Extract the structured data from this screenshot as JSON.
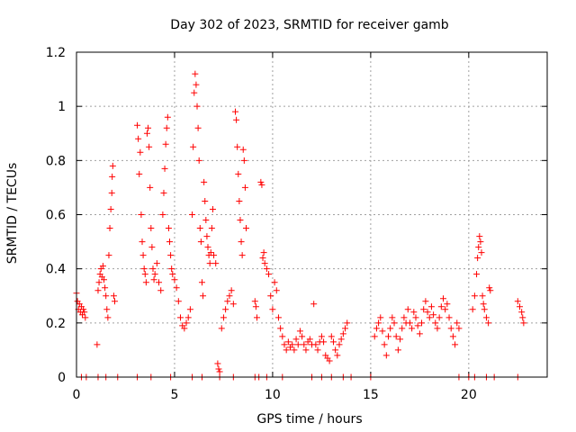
{
  "chart_data": {
    "type": "scatter",
    "title": "Day 302 of 2023, SRMTID for receiver gamb",
    "xlabel": "GPS time / hours",
    "ylabel": "SRMTID / TECUs",
    "xlim": [
      0,
      24
    ],
    "ylim": [
      0,
      1.2
    ],
    "xticks": [
      0,
      5,
      10,
      15,
      20
    ],
    "xtick_labels": [
      "0",
      "5",
      "10",
      "15",
      "20"
    ],
    "yticks": [
      0,
      0.2,
      0.4,
      0.6,
      0.8,
      1,
      1.2
    ],
    "ytick_labels": [
      "0",
      "0.2",
      "0.4",
      "0.6",
      "0.8",
      "1",
      "1.2"
    ],
    "grid": true,
    "marker": "+",
    "series": [
      {
        "name": "SRMTID",
        "color": "#ff0000",
        "points": [
          [
            0.0,
            0.31
          ],
          [
            0.05,
            0.28
          ],
          [
            0.1,
            0.25
          ],
          [
            0.15,
            0.27
          ],
          [
            0.2,
            0.24
          ],
          [
            0.25,
            0.26
          ],
          [
            0.3,
            0.23
          ],
          [
            0.35,
            0.25
          ],
          [
            0.4,
            0.24
          ],
          [
            0.45,
            0.22
          ],
          [
            1.05,
            0.12
          ],
          [
            1.1,
            0.32
          ],
          [
            1.15,
            0.35
          ],
          [
            1.2,
            0.38
          ],
          [
            1.25,
            0.4
          ],
          [
            1.3,
            0.37
          ],
          [
            1.35,
            0.41
          ],
          [
            1.4,
            0.36
          ],
          [
            1.45,
            0.33
          ],
          [
            1.5,
            0.3
          ],
          [
            1.55,
            0.25
          ],
          [
            1.6,
            0.22
          ],
          [
            1.65,
            0.45
          ],
          [
            1.7,
            0.55
          ],
          [
            1.75,
            0.62
          ],
          [
            1.8,
            0.68
          ],
          [
            1.82,
            0.74
          ],
          [
            1.85,
            0.78
          ],
          [
            1.9,
            0.3
          ],
          [
            1.95,
            0.28
          ],
          [
            3.1,
            0.93
          ],
          [
            3.15,
            0.88
          ],
          [
            3.2,
            0.75
          ],
          [
            3.25,
            0.83
          ],
          [
            3.3,
            0.6
          ],
          [
            3.35,
            0.5
          ],
          [
            3.4,
            0.45
          ],
          [
            3.45,
            0.4
          ],
          [
            3.5,
            0.38
          ],
          [
            3.55,
            0.35
          ],
          [
            3.6,
            0.9
          ],
          [
            3.65,
            0.92
          ],
          [
            3.7,
            0.85
          ],
          [
            3.75,
            0.7
          ],
          [
            3.8,
            0.55
          ],
          [
            3.85,
            0.48
          ],
          [
            3.9,
            0.4
          ],
          [
            3.95,
            0.36
          ],
          [
            4.0,
            0.38
          ],
          [
            4.1,
            0.42
          ],
          [
            4.2,
            0.35
          ],
          [
            4.3,
            0.32
          ],
          [
            4.4,
            0.6
          ],
          [
            4.45,
            0.68
          ],
          [
            4.5,
            0.77
          ],
          [
            4.55,
            0.86
          ],
          [
            4.6,
            0.92
          ],
          [
            4.65,
            0.96
          ],
          [
            4.7,
            0.55
          ],
          [
            4.75,
            0.5
          ],
          [
            4.8,
            0.45
          ],
          [
            4.85,
            0.4
          ],
          [
            4.9,
            0.38
          ],
          [
            5.0,
            0.36
          ],
          [
            5.1,
            0.33
          ],
          [
            5.2,
            0.28
          ],
          [
            5.3,
            0.22
          ],
          [
            5.4,
            0.19
          ],
          [
            5.5,
            0.18
          ],
          [
            5.6,
            0.2
          ],
          [
            5.7,
            0.22
          ],
          [
            5.8,
            0.25
          ],
          [
            5.9,
            0.6
          ],
          [
            5.95,
            0.85
          ],
          [
            6.0,
            1.05
          ],
          [
            6.05,
            1.12
          ],
          [
            6.1,
            1.08
          ],
          [
            6.15,
            1.0
          ],
          [
            6.2,
            0.92
          ],
          [
            6.25,
            0.8
          ],
          [
            6.3,
            0.55
          ],
          [
            6.35,
            0.5
          ],
          [
            6.4,
            0.35
          ],
          [
            6.45,
            0.3
          ],
          [
            6.5,
            0.72
          ],
          [
            6.55,
            0.65
          ],
          [
            6.6,
            0.58
          ],
          [
            6.65,
            0.52
          ],
          [
            6.7,
            0.48
          ],
          [
            6.75,
            0.45
          ],
          [
            6.8,
            0.42
          ],
          [
            6.85,
            0.46
          ],
          [
            6.9,
            0.55
          ],
          [
            6.95,
            0.62
          ],
          [
            7.0,
            0.45
          ],
          [
            7.1,
            0.42
          ],
          [
            7.2,
            0.05
          ],
          [
            7.25,
            0.03
          ],
          [
            7.3,
            0.02
          ],
          [
            7.4,
            0.18
          ],
          [
            7.5,
            0.22
          ],
          [
            7.6,
            0.25
          ],
          [
            7.7,
            0.28
          ],
          [
            7.8,
            0.3
          ],
          [
            7.9,
            0.32
          ],
          [
            8.0,
            0.27
          ],
          [
            8.1,
            0.98
          ],
          [
            8.15,
            0.95
          ],
          [
            8.2,
            0.85
          ],
          [
            8.25,
            0.75
          ],
          [
            8.3,
            0.65
          ],
          [
            8.35,
            0.58
          ],
          [
            8.4,
            0.5
          ],
          [
            8.45,
            0.45
          ],
          [
            8.5,
            0.84
          ],
          [
            8.55,
            0.8
          ],
          [
            8.6,
            0.7
          ],
          [
            8.65,
            0.55
          ],
          [
            9.1,
            0.28
          ],
          [
            9.15,
            0.26
          ],
          [
            9.2,
            0.22
          ],
          [
            9.4,
            0.72
          ],
          [
            9.45,
            0.71
          ],
          [
            9.5,
            0.44
          ],
          [
            9.55,
            0.46
          ],
          [
            9.6,
            0.42
          ],
          [
            9.7,
            0.4
          ],
          [
            9.8,
            0.38
          ],
          [
            9.9,
            0.3
          ],
          [
            10.0,
            0.25
          ],
          [
            10.1,
            0.35
          ],
          [
            10.2,
            0.32
          ],
          [
            10.3,
            0.22
          ],
          [
            10.4,
            0.18
          ],
          [
            10.5,
            0.15
          ],
          [
            10.6,
            0.12
          ],
          [
            10.7,
            0.1
          ],
          [
            10.8,
            0.13
          ],
          [
            10.9,
            0.11
          ],
          [
            11.0,
            0.12
          ],
          [
            11.1,
            0.1
          ],
          [
            11.2,
            0.14
          ],
          [
            11.3,
            0.12
          ],
          [
            11.4,
            0.17
          ],
          [
            11.5,
            0.15
          ],
          [
            11.6,
            0.12
          ],
          [
            11.7,
            0.1
          ],
          [
            11.8,
            0.13
          ],
          [
            11.9,
            0.14
          ],
          [
            12.0,
            0.12
          ],
          [
            12.1,
            0.27
          ],
          [
            12.2,
            0.12
          ],
          [
            12.3,
            0.1
          ],
          [
            12.4,
            0.13
          ],
          [
            12.5,
            0.15
          ],
          [
            12.6,
            0.13
          ],
          [
            12.7,
            0.08
          ],
          [
            12.8,
            0.07
          ],
          [
            12.9,
            0.06
          ],
          [
            13.0,
            0.15
          ],
          [
            13.1,
            0.13
          ],
          [
            13.2,
            0.1
          ],
          [
            13.3,
            0.08
          ],
          [
            13.4,
            0.12
          ],
          [
            13.5,
            0.14
          ],
          [
            13.6,
            0.16
          ],
          [
            13.7,
            0.18
          ],
          [
            13.8,
            0.2
          ],
          [
            15.2,
            0.15
          ],
          [
            15.3,
            0.18
          ],
          [
            15.4,
            0.2
          ],
          [
            15.5,
            0.22
          ],
          [
            15.6,
            0.17
          ],
          [
            15.7,
            0.12
          ],
          [
            15.8,
            0.08
          ],
          [
            15.9,
            0.15
          ],
          [
            16.0,
            0.18
          ],
          [
            16.1,
            0.22
          ],
          [
            16.2,
            0.2
          ],
          [
            16.3,
            0.15
          ],
          [
            16.4,
            0.1
          ],
          [
            16.5,
            0.14
          ],
          [
            16.6,
            0.18
          ],
          [
            16.7,
            0.22
          ],
          [
            16.8,
            0.2
          ],
          [
            16.9,
            0.25
          ],
          [
            17.0,
            0.2
          ],
          [
            17.1,
            0.18
          ],
          [
            17.2,
            0.24
          ],
          [
            17.3,
            0.22
          ],
          [
            17.4,
            0.19
          ],
          [
            17.5,
            0.16
          ],
          [
            17.6,
            0.2
          ],
          [
            17.7,
            0.25
          ],
          [
            17.8,
            0.28
          ],
          [
            17.9,
            0.24
          ],
          [
            18.0,
            0.22
          ],
          [
            18.1,
            0.26
          ],
          [
            18.2,
            0.23
          ],
          [
            18.3,
            0.2
          ],
          [
            18.4,
            0.18
          ],
          [
            18.5,
            0.22
          ],
          [
            18.6,
            0.26
          ],
          [
            18.7,
            0.29
          ],
          [
            18.8,
            0.25
          ],
          [
            18.9,
            0.27
          ],
          [
            19.0,
            0.22
          ],
          [
            19.1,
            0.18
          ],
          [
            19.2,
            0.15
          ],
          [
            19.3,
            0.12
          ],
          [
            19.4,
            0.2
          ],
          [
            19.5,
            0.18
          ],
          [
            20.2,
            0.25
          ],
          [
            20.3,
            0.3
          ],
          [
            20.4,
            0.38
          ],
          [
            20.45,
            0.44
          ],
          [
            20.5,
            0.48
          ],
          [
            20.55,
            0.52
          ],
          [
            20.6,
            0.5
          ],
          [
            20.65,
            0.46
          ],
          [
            20.7,
            0.3
          ],
          [
            20.75,
            0.27
          ],
          [
            20.8,
            0.25
          ],
          [
            20.9,
            0.22
          ],
          [
            21.0,
            0.2
          ],
          [
            21.05,
            0.33
          ],
          [
            21.1,
            0.32
          ],
          [
            22.5,
            0.28
          ],
          [
            22.6,
            0.26
          ],
          [
            22.7,
            0.24
          ],
          [
            22.75,
            0.22
          ],
          [
            22.8,
            0.2
          ],
          [
            0.25,
            0
          ],
          [
            0.5,
            0
          ],
          [
            1.1,
            0
          ],
          [
            1.5,
            0
          ],
          [
            2.1,
            0
          ],
          [
            3.1,
            0
          ],
          [
            3.8,
            0
          ],
          [
            4.8,
            0
          ],
          [
            5.9,
            0
          ],
          [
            6.4,
            0
          ],
          [
            7.3,
            0
          ],
          [
            8.0,
            0
          ],
          [
            9.1,
            0
          ],
          [
            9.3,
            0
          ],
          [
            9.7,
            0
          ],
          [
            10.5,
            0
          ],
          [
            12.0,
            0
          ],
          [
            12.5,
            0
          ],
          [
            13.0,
            0
          ],
          [
            13.6,
            0
          ],
          [
            14.0,
            0
          ],
          [
            15.0,
            0
          ],
          [
            19.5,
            0
          ],
          [
            20.0,
            0
          ],
          [
            20.3,
            0
          ],
          [
            20.9,
            0
          ],
          [
            21.3,
            0
          ],
          [
            22.5,
            0
          ]
        ]
      }
    ]
  }
}
